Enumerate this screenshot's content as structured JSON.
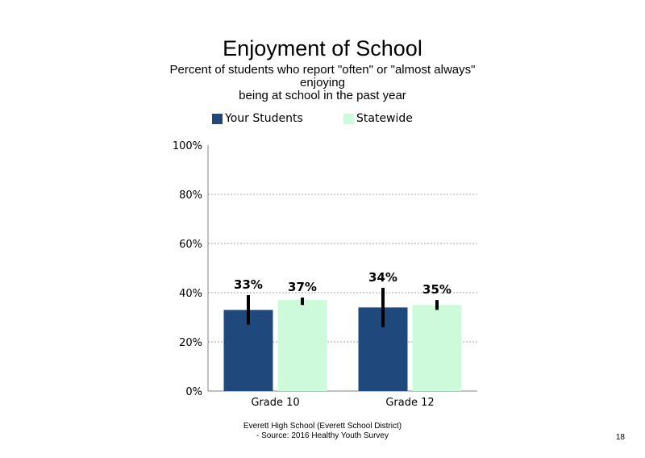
{
  "chart_data": {
    "type": "bar",
    "title": "Enjoyment of School",
    "subtitle_lines": [
      "Percent of students  who report \"often\" or \"almost always\"",
      "enjoying",
      "being at school in the past year"
    ],
    "categories": [
      "Grade 10",
      "Grade 12"
    ],
    "series": [
      {
        "name": "Your Students",
        "color": "#1f497d",
        "values": [
          33,
          34
        ],
        "labels": [
          "33%",
          "34%"
        ],
        "error": [
          [
            27,
            39
          ],
          [
            26,
            42
          ]
        ]
      },
      {
        "name": "Statewide",
        "color": "#ccfadb",
        "values": [
          37,
          35
        ],
        "labels": [
          "37%",
          "35%"
        ],
        "error": [
          [
            35,
            38
          ],
          [
            33,
            37
          ]
        ]
      }
    ],
    "ylim": [
      0,
      100
    ],
    "yticks": [
      0,
      20,
      40,
      60,
      80,
      100
    ],
    "ytick_labels": [
      "0%",
      "20%",
      "40%",
      "60%",
      "80%",
      "100%"
    ],
    "grid": true,
    "legend_position": "top"
  },
  "footer": {
    "line1": "Everett High School (Everett School District)",
    "line2": "- Source: 2016 Healthy  Youth Survey"
  },
  "page_number": "18"
}
